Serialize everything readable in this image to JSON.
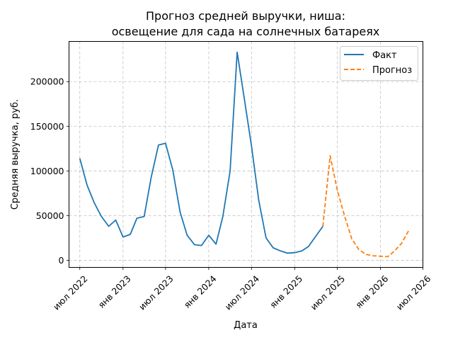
{
  "chart_data": {
    "type": "line",
    "title": [
      "Прогноз средней выручки, ниша:",
      "освещение для сада на солнечных батареях"
    ],
    "xlabel": "Дата",
    "ylabel": "Средняя выручка, руб.",
    "x_range": [
      "2022-05-16",
      "2026-07-01"
    ],
    "ylim": [
      -8000,
      245000
    ],
    "grid": true,
    "legend_position": "top-right",
    "x_ticks": [
      {
        "date": "2022-07-01",
        "label": "июл 2022"
      },
      {
        "date": "2023-01-01",
        "label": "янв 2023"
      },
      {
        "date": "2023-07-01",
        "label": "июл 2023"
      },
      {
        "date": "2024-01-01",
        "label": "янв 2024"
      },
      {
        "date": "2024-07-01",
        "label": "июл 2024"
      },
      {
        "date": "2025-01-01",
        "label": "янв 2025"
      },
      {
        "date": "2025-07-01",
        "label": "июл 2025"
      },
      {
        "date": "2026-01-01",
        "label": "янв 2026"
      },
      {
        "date": "2026-07-01",
        "label": "июл 2026"
      }
    ],
    "y_ticks": [
      {
        "value": 0,
        "label": "0"
      },
      {
        "value": 50000,
        "label": "50000"
      },
      {
        "value": 100000,
        "label": "100000"
      },
      {
        "value": 150000,
        "label": "150000"
      },
      {
        "value": 200000,
        "label": "200000"
      }
    ],
    "series": [
      {
        "name": "Факт",
        "color": "#1f77b4",
        "style": "solid",
        "points": [
          {
            "x": "2022-07-01",
            "y": 114000
          },
          {
            "x": "2022-08-01",
            "y": 84000
          },
          {
            "x": "2022-09-01",
            "y": 64000
          },
          {
            "x": "2022-10-01",
            "y": 49000
          },
          {
            "x": "2022-11-01",
            "y": 38000
          },
          {
            "x": "2022-12-01",
            "y": 45000
          },
          {
            "x": "2023-01-01",
            "y": 26000
          },
          {
            "x": "2023-02-01",
            "y": 29000
          },
          {
            "x": "2023-03-01",
            "y": 47000
          },
          {
            "x": "2023-04-01",
            "y": 49000
          },
          {
            "x": "2023-05-01",
            "y": 93000
          },
          {
            "x": "2023-06-01",
            "y": 129000
          },
          {
            "x": "2023-07-01",
            "y": 131000
          },
          {
            "x": "2023-08-01",
            "y": 101000
          },
          {
            "x": "2023-09-01",
            "y": 54000
          },
          {
            "x": "2023-10-01",
            "y": 28000
          },
          {
            "x": "2023-11-01",
            "y": 17500
          },
          {
            "x": "2023-12-01",
            "y": 16500
          },
          {
            "x": "2024-01-01",
            "y": 28000
          },
          {
            "x": "2024-02-01",
            "y": 18000
          },
          {
            "x": "2024-03-01",
            "y": 49000
          },
          {
            "x": "2024-04-01",
            "y": 100000
          },
          {
            "x": "2024-05-01",
            "y": 233000
          },
          {
            "x": "2024-06-01",
            "y": 180000
          },
          {
            "x": "2024-07-01",
            "y": 128000
          },
          {
            "x": "2024-08-01",
            "y": 67000
          },
          {
            "x": "2024-09-01",
            "y": 25000
          },
          {
            "x": "2024-10-01",
            "y": 14000
          },
          {
            "x": "2024-11-01",
            "y": 10500
          },
          {
            "x": "2024-12-01",
            "y": 8000
          },
          {
            "x": "2025-01-01",
            "y": 8500
          },
          {
            "x": "2025-02-01",
            "y": 10500
          },
          {
            "x": "2025-03-01",
            "y": 15500
          },
          {
            "x": "2025-04-01",
            "y": 27000
          },
          {
            "x": "2025-05-01",
            "y": 38000
          }
        ]
      },
      {
        "name": "Прогноз",
        "color": "#ff7f0e",
        "style": "dashed",
        "points": [
          {
            "x": "2025-05-01",
            "y": 38000
          },
          {
            "x": "2025-06-01",
            "y": 117000
          },
          {
            "x": "2025-07-01",
            "y": 79000
          },
          {
            "x": "2025-08-01",
            "y": 50000
          },
          {
            "x": "2025-09-01",
            "y": 24000
          },
          {
            "x": "2025-10-01",
            "y": 12000
          },
          {
            "x": "2025-11-01",
            "y": 6500
          },
          {
            "x": "2025-12-01",
            "y": 5000
          },
          {
            "x": "2026-01-01",
            "y": 4500
          },
          {
            "x": "2026-02-01",
            "y": 4000
          },
          {
            "x": "2026-03-01",
            "y": 10000
          },
          {
            "x": "2026-04-01",
            "y": 19000
          },
          {
            "x": "2026-05-01",
            "y": 33000
          }
        ]
      }
    ]
  }
}
